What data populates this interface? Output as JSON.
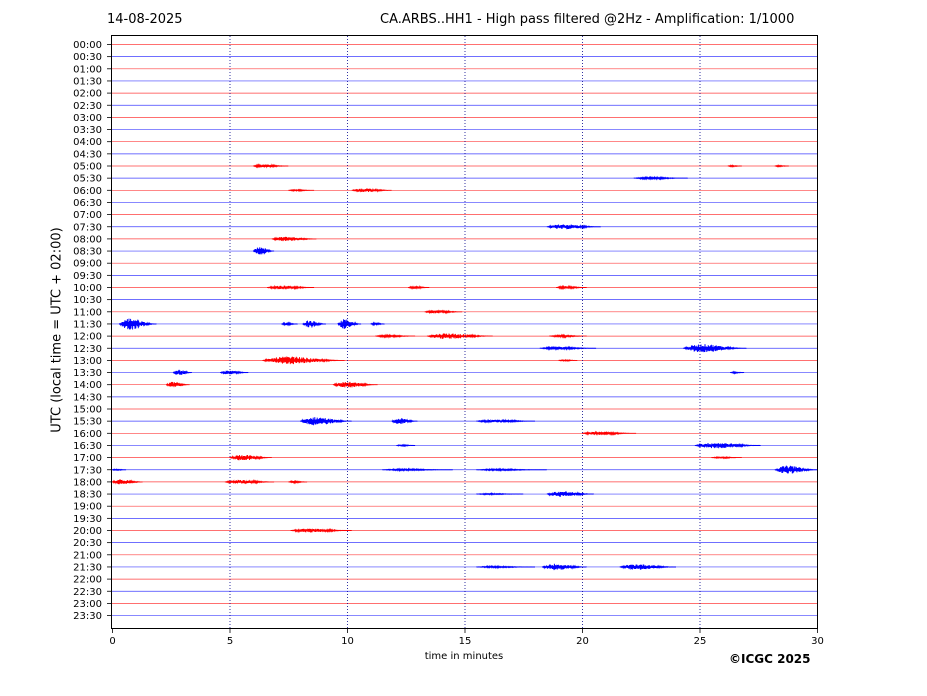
{
  "header": {
    "date": "14-08-2025",
    "title": "CA.ARBS..HH1 - High pass filtered @2Hz - Amplification: 1/1000"
  },
  "footer": {
    "copyright": "©ICGC 2025"
  },
  "chart_data": {
    "type": "line",
    "title": "CA.ARBS..HH1 - High pass filtered @2Hz - Amplification: 1/1000",
    "xlabel": "time in minutes",
    "ylabel": "UTC (local time = UTC + 02:00)",
    "xlim": [
      0,
      30
    ],
    "xticks": [
      0,
      5,
      10,
      15,
      20,
      25,
      30
    ],
    "grid": "vertical dotted at 5-minute ticks",
    "trace_colors": {
      "hour": "#ff0000",
      "half_hour": "#0000ff"
    },
    "rows": [
      "00:00",
      "00:30",
      "01:00",
      "01:30",
      "02:00",
      "02:30",
      "03:00",
      "03:30",
      "04:00",
      "04:30",
      "05:00",
      "05:30",
      "06:00",
      "06:30",
      "07:00",
      "07:30",
      "08:00",
      "08:30",
      "09:00",
      "09:30",
      "10:00",
      "10:30",
      "11:00",
      "11:30",
      "12:00",
      "12:30",
      "13:00",
      "13:30",
      "14:00",
      "14:30",
      "15:00",
      "15:30",
      "16:00",
      "16:30",
      "17:00",
      "17:30",
      "18:00",
      "18:30",
      "19:00",
      "19:30",
      "20:00",
      "20:30",
      "21:00",
      "21:30",
      "22:00",
      "22:30",
      "23:00",
      "23:30"
    ],
    "events": [
      {
        "row": "05:00",
        "start": 6.0,
        "end": 7.5,
        "amp": 0.25
      },
      {
        "row": "05:00",
        "start": 26.2,
        "end": 26.8,
        "amp": 0.1
      },
      {
        "row": "05:00",
        "start": 28.2,
        "end": 28.8,
        "amp": 0.1
      },
      {
        "row": "05:30",
        "start": 22.2,
        "end": 24.5,
        "amp": 0.15
      },
      {
        "row": "06:00",
        "start": 7.5,
        "end": 8.6,
        "amp": 0.1
      },
      {
        "row": "06:00",
        "start": 10.2,
        "end": 11.9,
        "amp": 0.3
      },
      {
        "row": "07:30",
        "start": 18.5,
        "end": 20.8,
        "amp": 0.4
      },
      {
        "row": "08:00",
        "start": 6.8,
        "end": 8.7,
        "amp": 0.35
      },
      {
        "row": "08:30",
        "start": 6.0,
        "end": 6.9,
        "amp": 0.75
      },
      {
        "row": "10:00",
        "start": 6.6,
        "end": 8.6,
        "amp": 0.3
      },
      {
        "row": "10:00",
        "start": 12.6,
        "end": 13.5,
        "amp": 0.2
      },
      {
        "row": "10:00",
        "start": 18.9,
        "end": 20.2,
        "amp": 0.2
      },
      {
        "row": "11:00",
        "start": 13.3,
        "end": 14.9,
        "amp": 0.25
      },
      {
        "row": "11:30",
        "start": 0.3,
        "end": 1.9,
        "amp": 0.9
      },
      {
        "row": "11:30",
        "start": 7.2,
        "end": 7.9,
        "amp": 0.2
      },
      {
        "row": "11:30",
        "start": 8.1,
        "end": 9.1,
        "amp": 0.6
      },
      {
        "row": "11:30",
        "start": 9.6,
        "end": 10.6,
        "amp": 0.75
      },
      {
        "row": "11:30",
        "start": 11.0,
        "end": 11.6,
        "amp": 0.2
      },
      {
        "row": "12:00",
        "start": 11.2,
        "end": 12.9,
        "amp": 0.15
      },
      {
        "row": "12:00",
        "start": 13.4,
        "end": 16.2,
        "amp": 0.45
      },
      {
        "row": "12:00",
        "start": 18.6,
        "end": 20.2,
        "amp": 0.15
      },
      {
        "row": "12:30",
        "start": 18.2,
        "end": 20.6,
        "amp": 0.2
      },
      {
        "row": "12:30",
        "start": 24.3,
        "end": 27.0,
        "amp": 0.65
      },
      {
        "row": "13:00",
        "start": 6.4,
        "end": 9.9,
        "amp": 0.6
      },
      {
        "row": "13:00",
        "start": 19.0,
        "end": 19.8,
        "amp": 0.1
      },
      {
        "row": "13:30",
        "start": 2.6,
        "end": 3.4,
        "amp": 0.45
      },
      {
        "row": "13:30",
        "start": 4.6,
        "end": 5.8,
        "amp": 0.3
      },
      {
        "row": "13:30",
        "start": 26.3,
        "end": 26.9,
        "amp": 0.1
      },
      {
        "row": "14:00",
        "start": 2.3,
        "end": 3.3,
        "amp": 0.45
      },
      {
        "row": "14:00",
        "start": 9.4,
        "end": 11.3,
        "amp": 0.45
      },
      {
        "row": "15:30",
        "start": 8.0,
        "end": 10.2,
        "amp": 0.65
      },
      {
        "row": "15:30",
        "start": 11.9,
        "end": 13.0,
        "amp": 0.45
      },
      {
        "row": "15:30",
        "start": 15.5,
        "end": 18.0,
        "amp": 0.25
      },
      {
        "row": "16:00",
        "start": 20.0,
        "end": 22.3,
        "amp": 0.25
      },
      {
        "row": "16:30",
        "start": 12.1,
        "end": 12.9,
        "amp": 0.1
      },
      {
        "row": "16:30",
        "start": 24.8,
        "end": 27.6,
        "amp": 0.45
      },
      {
        "row": "17:00",
        "start": 5.0,
        "end": 6.8,
        "amp": 0.45
      },
      {
        "row": "17:00",
        "start": 25.5,
        "end": 26.8,
        "amp": 0.1
      },
      {
        "row": "17:30",
        "start": 0.0,
        "end": 0.6,
        "amp": 0.1
      },
      {
        "row": "17:30",
        "start": 11.5,
        "end": 14.5,
        "amp": 0.12
      },
      {
        "row": "17:30",
        "start": 15.5,
        "end": 18.5,
        "amp": 0.12
      },
      {
        "row": "17:30",
        "start": 28.2,
        "end": 30.0,
        "amp": 0.65
      },
      {
        "row": "18:00",
        "start": 0.0,
        "end": 1.3,
        "amp": 0.4
      },
      {
        "row": "18:00",
        "start": 4.8,
        "end": 6.9,
        "amp": 0.3
      },
      {
        "row": "18:00",
        "start": 7.5,
        "end": 8.3,
        "amp": 0.15
      },
      {
        "row": "18:30",
        "start": 15.5,
        "end": 17.5,
        "amp": 0.1
      },
      {
        "row": "18:30",
        "start": 18.5,
        "end": 20.5,
        "amp": 0.45
      },
      {
        "row": "20:00",
        "start": 7.6,
        "end": 10.2,
        "amp": 0.3
      },
      {
        "row": "21:30",
        "start": 15.5,
        "end": 18.0,
        "amp": 0.12
      },
      {
        "row": "21:30",
        "start": 18.3,
        "end": 20.2,
        "amp": 0.5
      },
      {
        "row": "21:30",
        "start": 21.6,
        "end": 24.0,
        "amp": 0.45
      }
    ]
  }
}
